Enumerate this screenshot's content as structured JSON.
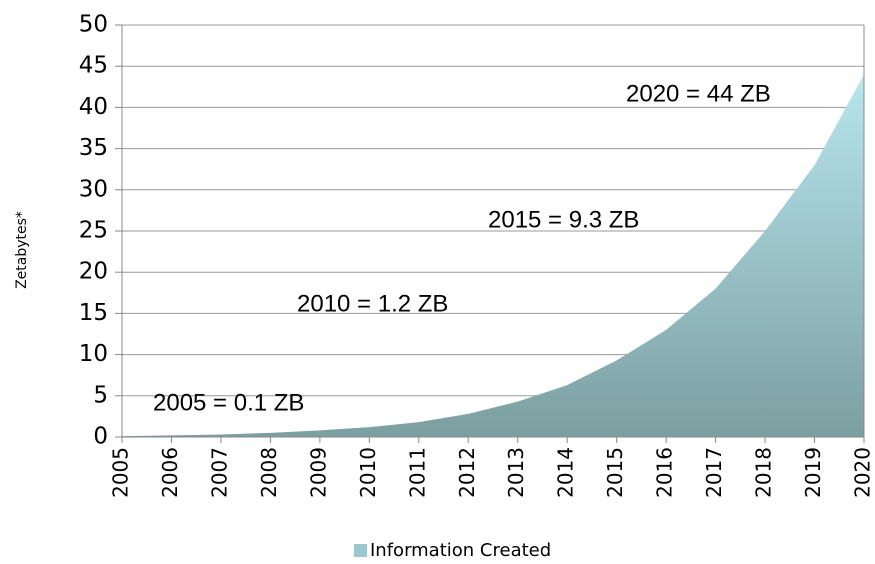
{
  "chart_data": {
    "type": "area",
    "y_label": "Zetabytes*",
    "categories": [
      "2005",
      "2006",
      "2007",
      "2008",
      "2009",
      "2010",
      "2011",
      "2012",
      "2013",
      "2014",
      "2015",
      "2016",
      "2017",
      "2018",
      "2019",
      "2020"
    ],
    "series": [
      {
        "name": "Information Created",
        "color": "#9cc7cc",
        "values": [
          0.1,
          0.2,
          0.3,
          0.5,
          0.8,
          1.2,
          1.8,
          2.8,
          4.3,
          6.3,
          9.3,
          13,
          18,
          25,
          33,
          44
        ]
      }
    ],
    "ylim": [
      0,
      50
    ],
    "yticks": [
      0,
      5,
      10,
      15,
      20,
      25,
      30,
      35,
      40,
      45,
      50
    ],
    "grid": true,
    "annotations": [
      "2005 = 0.1 ZB",
      "2010 = 1.2 ZB",
      "2015 = 9.3 ZB",
      "2020 = 44 ZB"
    ],
    "legend": "bottom"
  }
}
